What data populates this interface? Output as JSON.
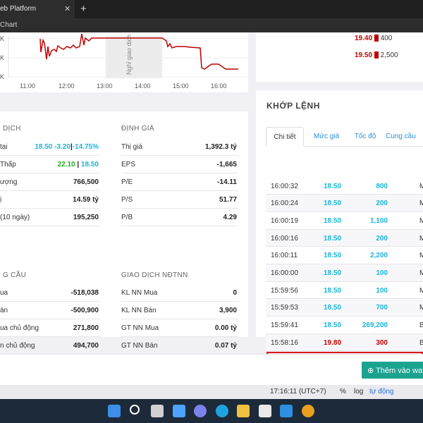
{
  "browser": {
    "tab_title": "eb Platform",
    "close_glyph": "✕",
    "new_tab_glyph": "+",
    "address_text": "Chart"
  },
  "chart": {
    "y_labels": [
      "K",
      "K",
      "K"
    ],
    "x_labels": [
      "11:00",
      "12:00",
      "13:00",
      "14:00",
      "15:00",
      "16:00"
    ],
    "break_label": "Nghỉ giao dịch",
    "line_color": "#c00000"
  },
  "order_book": {
    "rows": [
      {
        "price": "19.40",
        "volume": "400"
      },
      {
        "price": "19.50",
        "volume": "2,500"
      }
    ]
  },
  "stats": {
    "trading": {
      "title": "DỊCH",
      "rows": [
        {
          "label": "tại",
          "value_a": "18.50",
          "value_b": "-3.20",
          "sep": "|",
          "value_c": "-14.75%"
        },
        {
          "label": "Thấp",
          "value_a": "22.10",
          "sep": "|",
          "value_b": "18.50"
        },
        {
          "label": "ượng",
          "value": "766,500"
        },
        {
          "label": "ị",
          "value": "14.59 tỷ"
        },
        {
          "label": "(10 ngày)",
          "value": "195,250"
        }
      ]
    },
    "valuation": {
      "title": "ĐỊNH GIÁ",
      "rows": [
        {
          "label": "Thị giá",
          "value": "1,392.3 tỷ"
        },
        {
          "label": "EPS",
          "value": "-1,665"
        },
        {
          "label": "P/E",
          "value": "-14.11"
        },
        {
          "label": "P/S",
          "value": "51.77"
        },
        {
          "label": "P/B",
          "value": "4.29"
        }
      ]
    },
    "supply": {
      "title": "G CẦU",
      "rows": [
        {
          "label": "ua",
          "value": "-518,038"
        },
        {
          "label": "án",
          "value": "-500,900"
        },
        {
          "label": "ua chủ động",
          "value": "271,800"
        },
        {
          "label": "n chủ động",
          "value": "494,700"
        }
      ]
    },
    "foreign": {
      "title": "GIAO DỊCH NĐTNN",
      "rows": [
        {
          "label": "KL NN Mua",
          "value": "0"
        },
        {
          "label": "KL NN Bán",
          "value": "3,900"
        },
        {
          "label": "GT NN Mua",
          "value": "0.00 tỷ"
        },
        {
          "label": "GT NN Bán",
          "value": "0.07 tỷ"
        }
      ]
    }
  },
  "matching": {
    "title": "KHỚP LỆNH",
    "tabs": [
      "Chi tiết",
      "Mức giá",
      "Tốc độ",
      "Cung cầu"
    ],
    "trades": [
      {
        "time": "16:00:32",
        "price": "18.50",
        "volume": "800",
        "side": "M",
        "color": "cyan"
      },
      {
        "time": "16:00:24",
        "price": "18.50",
        "volume": "200",
        "side": "M",
        "color": "cyan"
      },
      {
        "time": "16:00:19",
        "price": "18.50",
        "volume": "1,100",
        "side": "M",
        "color": "cyan"
      },
      {
        "time": "16:00:16",
        "price": "18.50",
        "volume": "200",
        "side": "M",
        "color": "cyan"
      },
      {
        "time": "16:00:11",
        "price": "18.50",
        "volume": "2,200",
        "side": "M",
        "color": "cyan"
      },
      {
        "time": "16:00:00",
        "price": "18.50",
        "volume": "100",
        "side": "M",
        "color": "cyan"
      },
      {
        "time": "15:59:56",
        "price": "18.50",
        "volume": "100",
        "side": "M",
        "color": "cyan"
      },
      {
        "time": "15:59:53",
        "price": "18.50",
        "volume": "700",
        "side": "M",
        "color": "cyan"
      },
      {
        "time": "15:59:41",
        "price": "18.50",
        "volume": "269,200",
        "side": "B",
        "color": "cyan"
      },
      {
        "time": "15:58:16",
        "price": "19.80",
        "volume": "300",
        "side": "B",
        "color": "red"
      }
    ]
  },
  "bottom": {
    "watchlist_button": "Thêm vào wat",
    "plus_glyph": "⊕"
  },
  "status": {
    "clock": "17:16:11 (UTC+7)",
    "percent": "%",
    "log": "log",
    "auto": "tự động"
  },
  "taskbar_icons": [
    {
      "name": "windows-start-icon",
      "color": "#3c8ee8"
    },
    {
      "name": "search-icon",
      "color": "#ffffff"
    },
    {
      "name": "task-view-icon",
      "color": "#d0d0d0"
    },
    {
      "name": "widgets-icon",
      "color": "#4da3ff"
    },
    {
      "name": "teams-chat-icon",
      "color": "#7b83eb"
    },
    {
      "name": "edge-icon",
      "color": "#1fa3e0"
    },
    {
      "name": "file-explorer-icon",
      "color": "#f0c040"
    },
    {
      "name": "store-icon",
      "color": "#e8e8e8"
    },
    {
      "name": "mail-icon",
      "color": "#2f8ee0"
    },
    {
      "name": "chrome-icon",
      "color": "#e8a020"
    }
  ]
}
